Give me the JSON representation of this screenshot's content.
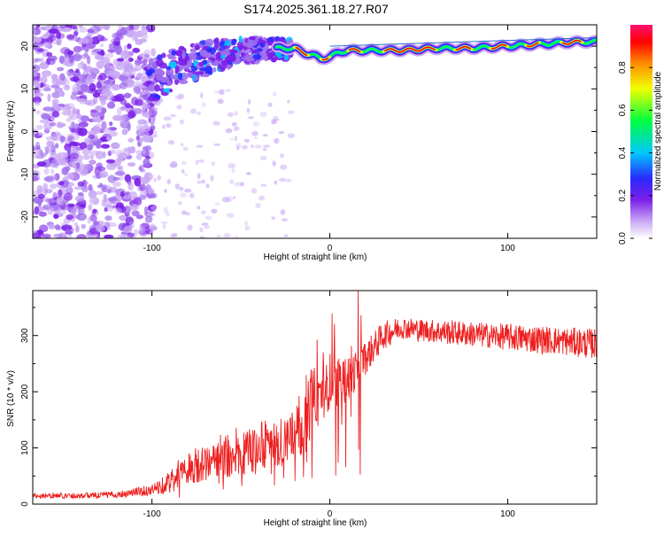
{
  "page_title": "S174.2025.361.18.27.R07",
  "chart_data": [
    {
      "type": "heatmap",
      "title": "S174.2025.361.18.27.R07",
      "xlabel": "Height of straight line (km)",
      "ylabel": "Frequency (Hz)",
      "xlim": [
        -167,
        150
      ],
      "ylim": [
        -25,
        25
      ],
      "x_ticks": [
        -100,
        0,
        100
      ],
      "y_ticks": [
        -20,
        -10,
        0,
        10,
        20
      ],
      "colorbar": {
        "label": "Normalized spectral amplitude",
        "range": [
          0,
          1
        ],
        "ticks": [
          0.0,
          0.2,
          0.4,
          0.6,
          0.8
        ],
        "colors": [
          "#ffffff",
          "#c9a8f5",
          "#7b1fe8",
          "#2a2aff",
          "#00c8ff",
          "#00ff40",
          "#f0ff00",
          "#ff8c00",
          "#ff0000",
          "#ff1070"
        ]
      },
      "ridge": {
        "description": "Dominant frequency trace",
        "x": [
          -100,
          -90,
          -80,
          -70,
          -60,
          -50,
          -40,
          -30,
          -20,
          -15,
          -10,
          -5,
          0,
          5,
          10,
          20,
          40,
          60,
          80,
          100,
          120,
          140,
          150
        ],
        "y": [
          12,
          14,
          16,
          17,
          18,
          19,
          19.5,
          19.5,
          19.5,
          18.5,
          18,
          17,
          17.5,
          18.5,
          19,
          19,
          19,
          19.5,
          19.5,
          20,
          20.5,
          21,
          21
        ]
      },
      "reference_line": {
        "x": [
          0,
          150
        ],
        "y": [
          20,
          22
        ]
      }
    },
    {
      "type": "line",
      "xlabel": "Height of straight line (km)",
      "ylabel": "SNR (10 * v/v)",
      "xlim": [
        -167,
        150
      ],
      "ylim": [
        0,
        380
      ],
      "x_ticks": [
        -100,
        0,
        100
      ],
      "y_ticks": [
        0,
        100,
        200,
        300
      ],
      "series": [
        {
          "name": "SNR",
          "color": "#ee2020",
          "x": [
            -167,
            -140,
            -120,
            -100,
            -90,
            -80,
            -70,
            -60,
            -50,
            -40,
            -30,
            -20,
            -15,
            -10,
            0,
            10,
            20,
            30,
            40,
            50,
            70,
            90,
            110,
            130,
            150
          ],
          "y": [
            15,
            15,
            17,
            25,
            40,
            60,
            70,
            80,
            90,
            100,
            110,
            120,
            140,
            180,
            220,
            220,
            260,
            300,
            315,
            310,
            305,
            300,
            295,
            290,
            285
          ],
          "spread": [
            10,
            10,
            12,
            20,
            40,
            50,
            60,
            70,
            80,
            90,
            90,
            100,
            110,
            120,
            100,
            80,
            60,
            50,
            40,
            40,
            45,
            45,
            50,
            50,
            55
          ]
        }
      ]
    }
  ]
}
